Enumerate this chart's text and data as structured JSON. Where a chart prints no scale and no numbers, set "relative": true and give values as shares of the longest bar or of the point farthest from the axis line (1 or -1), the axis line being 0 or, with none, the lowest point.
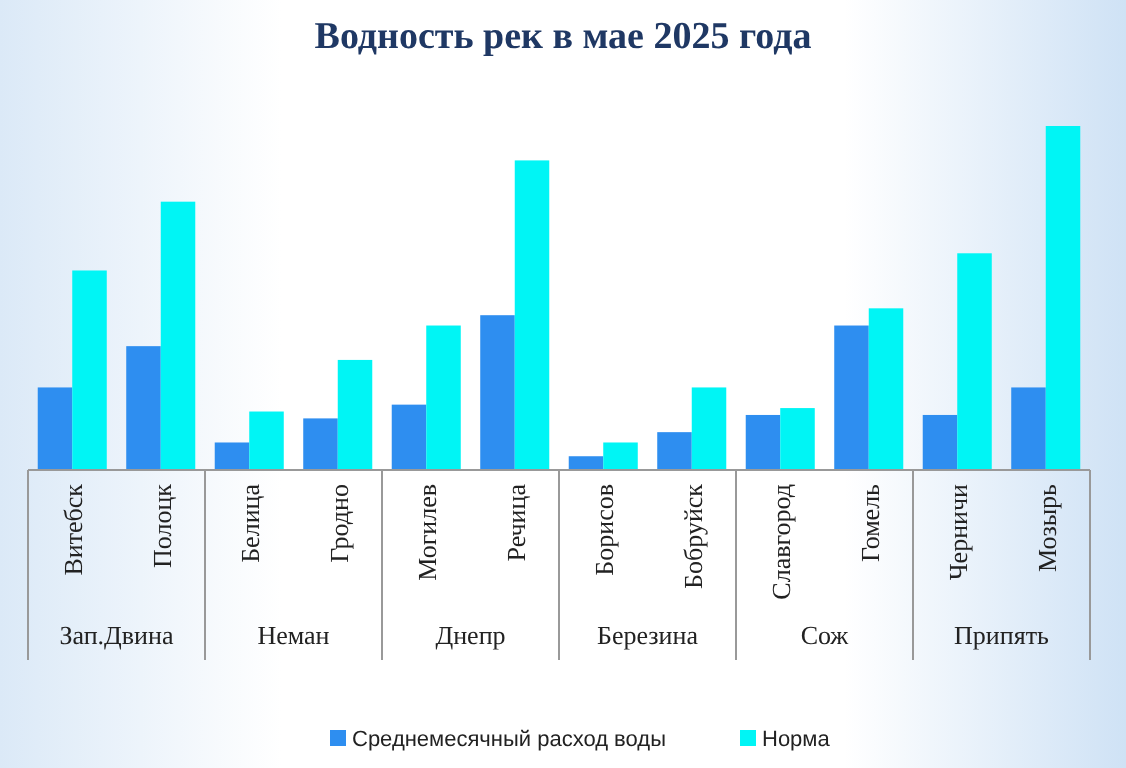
{
  "chart_data": {
    "type": "bar",
    "title": "Водность рек в мае 2025 года",
    "relative": true,
    "legend": "bottom",
    "grid": false,
    "categories": [
      "Витебск",
      "Полоцк",
      "Белица",
      "Гродно",
      "Могилев",
      "Речица",
      "Борисов",
      "Бобруйск",
      "Славгород",
      "Гомель",
      "Черничи",
      "Мозырь"
    ],
    "annotations": [
      "Зап.Двина",
      "Неман",
      "Днепр",
      "Березина",
      "Сож",
      "Припять"
    ],
    "series": [
      {
        "name": "Среднемесячный расход воды",
        "color": "#2e8ef0",
        "values": [
          0.24,
          0.36,
          0.08,
          0.15,
          0.19,
          0.45,
          0.04,
          0.11,
          0.16,
          0.42,
          0.16,
          0.24
        ]
      },
      {
        "name": "Норма",
        "color": "#00f5f5",
        "values": [
          0.58,
          0.78,
          0.17,
          0.32,
          0.42,
          0.9,
          0.08,
          0.24,
          0.18,
          0.47,
          0.63,
          1
        ]
      }
    ]
  }
}
